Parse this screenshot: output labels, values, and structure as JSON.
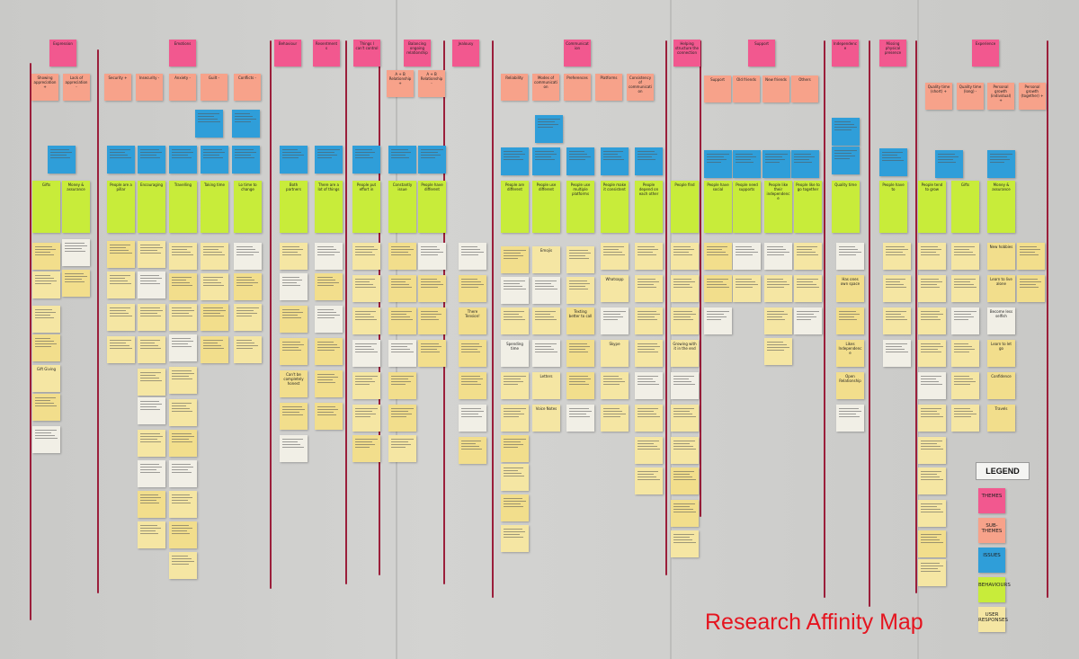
{
  "title": "Research Affinity Map",
  "legend": {
    "heading": "LEGEND",
    "items": [
      {
        "label": "THEMES",
        "color": "#f2588f"
      },
      {
        "label": "SUB-THEMES",
        "color": "#f7a28a"
      },
      {
        "label": "ISSUES",
        "color": "#2f9ed9"
      },
      {
        "label": "BEHAVIOURS",
        "color": "#c8ec3a"
      },
      {
        "label": "USER RESPONSES",
        "color": "#f5e6a3"
      }
    ]
  },
  "colors": {
    "theme": "#f2588f",
    "sub_theme": "#f7a28a",
    "issue": "#2f9ed9",
    "behaviour": "#c8ec3a",
    "response": "#f5e6a3",
    "string": "#9b1e3a",
    "title": "#e5141f"
  },
  "themes": [
    "Expression",
    "Emotions",
    "Behaviour",
    "Resentments",
    "Things I can't control",
    "Balancing ongoing relationship",
    "Jealousy",
    "Communication",
    "Helping structure the connection",
    "Support",
    "Independence",
    "Missing physical presence",
    "Experience"
  ],
  "sub_themes": [
    "Showing appreciation +",
    "Lack of appreciation -",
    "Security +",
    "Insecurity -",
    "Anxiety -",
    "Guilt -",
    "Conflicts -",
    "A + B Relationship +",
    "A + B Relationship -",
    "Reliability",
    "Modes of communication",
    "Preferences",
    "Platforms",
    "Consistency of communication",
    "Support",
    "Old friends",
    "New friends",
    "Others",
    "Quality time (short) +",
    "Quality time (long) -",
    "Personal growth (individual) +",
    "Personal growth (together) +"
  ],
  "issues": [
    "People need reassurance",
    "Trust",
    "Guilt",
    "Conflict",
    "Change",
    "Effort",
    "Sharing",
    "Time",
    "Growth"
  ],
  "behaviours": [
    "Gifts",
    "Money & assurance",
    "People are a pillar",
    "Encouraging",
    "Travelling",
    "Taking time",
    "Lo time to change",
    "Both partners",
    "There are a lot of things",
    "People put effort in",
    "Constantly issue",
    "People have different",
    "People are different",
    "People use different",
    "People use multiple platforms",
    "People make it consistent",
    "People depend on each other",
    "People find",
    "People have social",
    "People need supports",
    "People like their independence",
    "People like to go together",
    "Quality time",
    "People have to",
    "People tend to grow"
  ],
  "responses": [
    "Gift Giving",
    "Can't be completely honest",
    "There Tension!",
    "Emojis",
    "Whatsapp",
    "Skype",
    "Letters",
    "Voice Notes",
    "Texting better to call",
    "Spending time",
    "Likes Independence",
    "Open Relationship",
    "New hobbies",
    "Learn to live alone",
    "Become less selfish",
    "Learn to let go",
    "Confidence",
    "Travels",
    "Growing with it in the end",
    "Has ones own space",
    "Loyalty",
    "Stress"
  ]
}
